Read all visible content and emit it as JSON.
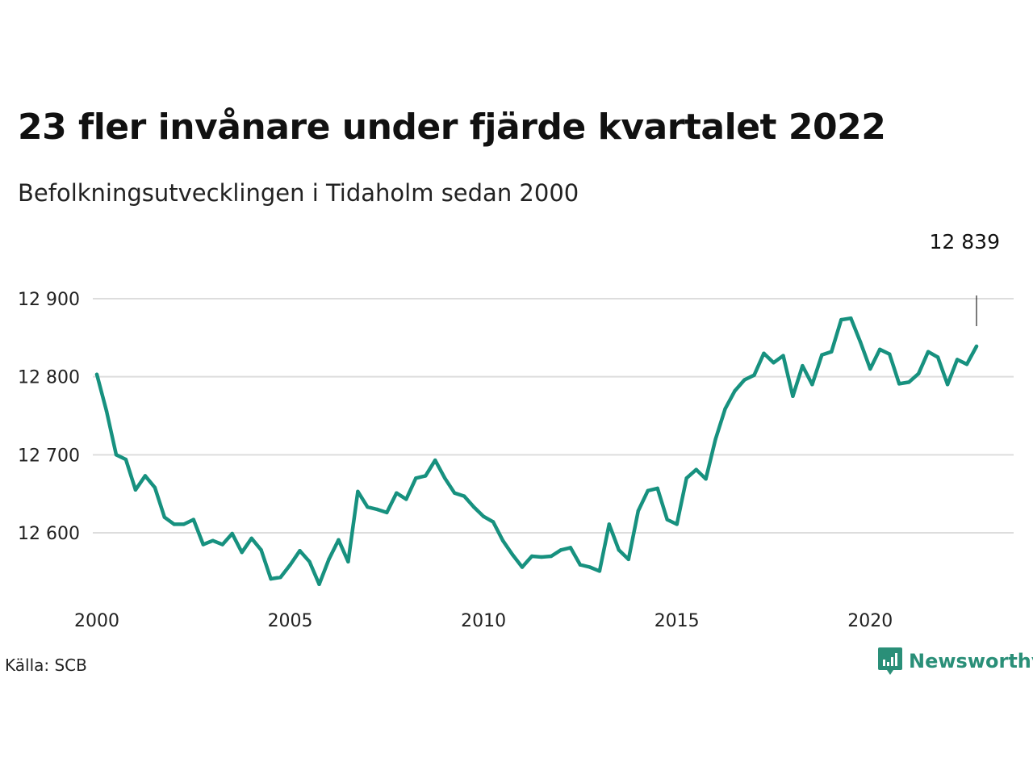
{
  "header": {
    "title": "23 fler invånare under fjärde kvartalet 2022",
    "subtitle": "Befolkningsutvecklingen i Tidaholm sedan 2000"
  },
  "footer": {
    "source": "Källa: SCB",
    "brand": "Newsworthy"
  },
  "colors": {
    "line": "#17917f",
    "grid": "#dddddd",
    "brand": "#2a8f78"
  },
  "chart_data": {
    "type": "line",
    "title": "23 fler invånare under fjärde kvartalet 2022",
    "subtitle": "Befolkningsutvecklingen i Tidaholm sedan 2000",
    "xlabel": "",
    "ylabel": "",
    "xlim": [
      2000,
      2022.75
    ],
    "ylim": [
      12530,
      12910
    ],
    "x_ticks": [
      2000,
      2005,
      2010,
      2015,
      2020
    ],
    "y_ticks": [
      12600,
      12700,
      12800,
      12900
    ],
    "y_tick_labels": [
      "12 600",
      "12 700",
      "12 800",
      "12 900"
    ],
    "grid": true,
    "last_value_label": "12 839",
    "series": [
      {
        "x": [
          2000.0,
          2000.25,
          2000.5,
          2000.75,
          2001.0,
          2001.25,
          2001.5,
          2001.75,
          2002.0,
          2002.25,
          2002.5,
          2002.75,
          2003.0,
          2003.25,
          2003.5,
          2003.75,
          2004.0,
          2004.25,
          2004.5,
          2004.75,
          2005.0,
          2005.25,
          2005.5,
          2005.75,
          2006.0,
          2006.25,
          2006.5,
          2006.75,
          2007.0,
          2007.25,
          2007.5,
          2007.75,
          2008.0,
          2008.25,
          2008.5,
          2008.75,
          2009.0,
          2009.25,
          2009.5,
          2009.75,
          2010.0,
          2010.25,
          2010.5,
          2010.75,
          2011.0,
          2011.25,
          2011.5,
          2011.75,
          2012.0,
          2012.25,
          2012.5,
          2012.75,
          2013.0,
          2013.25,
          2013.5,
          2013.75,
          2014.0,
          2014.25,
          2014.5,
          2014.75,
          2015.0,
          2015.25,
          2015.5,
          2015.75,
          2016.0,
          2016.25,
          2016.5,
          2016.75,
          2017.0,
          2017.25,
          2017.5,
          2017.75,
          2018.0,
          2018.25,
          2018.5,
          2018.75,
          2019.0,
          2019.25,
          2019.5,
          2019.75,
          2020.0,
          2020.25,
          2020.5,
          2020.75,
          2021.0,
          2021.25,
          2021.5,
          2021.75,
          2022.0,
          2022.25,
          2022.5,
          2022.75
        ],
        "values": [
          12803,
          12756,
          12700,
          12694,
          12655,
          12673,
          12658,
          12620,
          12611,
          12611,
          12617,
          12585,
          12590,
          12585,
          12599,
          12575,
          12593,
          12578,
          12541,
          12543,
          12559,
          12577,
          12563,
          12534,
          12566,
          12591,
          12563,
          12653,
          12633,
          12630,
          12626,
          12651,
          12643,
          12670,
          12673,
          12693,
          12670,
          12651,
          12647,
          12633,
          12621,
          12614,
          12590,
          12572,
          12556,
          12570,
          12569,
          12570,
          12578,
          12581,
          12559,
          12556,
          12551,
          12611,
          12578,
          12566,
          12628,
          12654,
          12657,
          12617,
          12611,
          12670,
          12681,
          12669,
          12720,
          12759,
          12782,
          12796,
          12802,
          12830,
          12818,
          12827,
          12775,
          12814,
          12790,
          12828,
          12832,
          12873,
          12875,
          12844,
          12810,
          12835,
          12829,
          12791,
          12793,
          12804,
          12832,
          12825,
          12790,
          12822,
          12816,
          12839
        ]
      }
    ]
  }
}
